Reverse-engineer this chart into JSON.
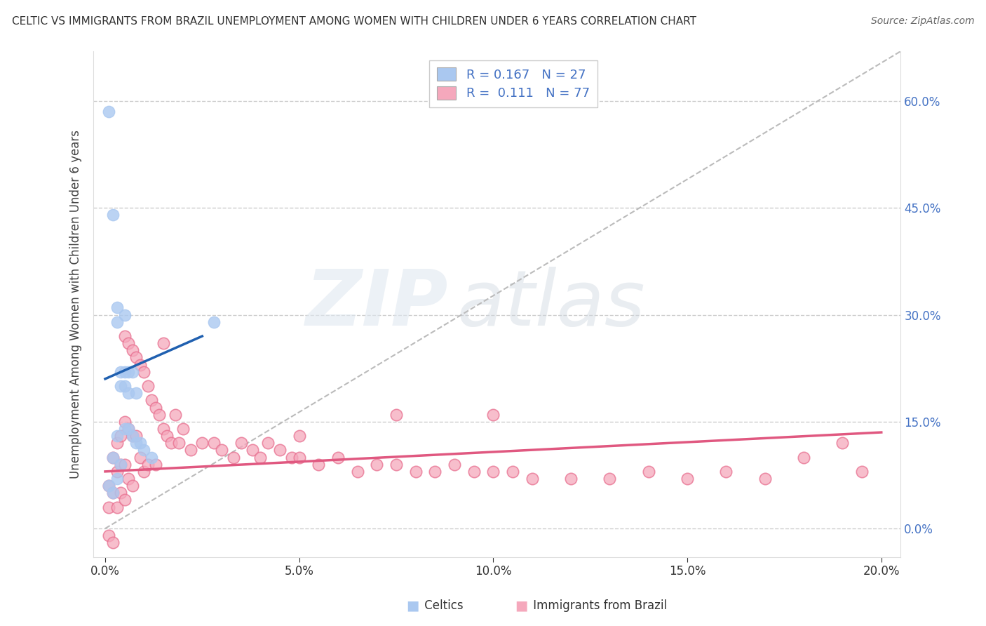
{
  "title": "CELTIC VS IMMIGRANTS FROM BRAZIL UNEMPLOYMENT AMONG WOMEN WITH CHILDREN UNDER 6 YEARS CORRELATION CHART",
  "source": "Source: ZipAtlas.com",
  "ylabel": "Unemployment Among Women with Children Under 6 years",
  "x_ticks": [
    "0.0%",
    "5.0%",
    "10.0%",
    "15.0%",
    "20.0%"
  ],
  "x_tick_vals": [
    0.0,
    0.05,
    0.1,
    0.15,
    0.2
  ],
  "y_ticks_right": [
    "0.0%",
    "15.0%",
    "30.0%",
    "45.0%",
    "60.0%"
  ],
  "y_tick_vals": [
    0.0,
    0.15,
    0.3,
    0.45,
    0.6
  ],
  "xlim": [
    -0.003,
    0.205
  ],
  "ylim": [
    -0.04,
    0.67
  ],
  "celtics_R": 0.167,
  "celtics_N": 27,
  "brazil_R": 0.111,
  "brazil_N": 77,
  "legend_labels": [
    "Celtics",
    "Immigrants from Brazil"
  ],
  "celtics_color": "#aac8f0",
  "celtics_edge_color": "#aac8f0",
  "celtics_line_color": "#2060b0",
  "brazil_color": "#f5a8bc",
  "brazil_edge_color": "#e87090",
  "brazil_line_color": "#e05880",
  "trendline_color": "#bbbbbb",
  "background_color": "#ffffff",
  "celtics_scatter_x": [
    0.001,
    0.001,
    0.002,
    0.002,
    0.002,
    0.003,
    0.003,
    0.003,
    0.003,
    0.004,
    0.004,
    0.004,
    0.005,
    0.005,
    0.005,
    0.005,
    0.006,
    0.006,
    0.006,
    0.007,
    0.007,
    0.008,
    0.008,
    0.009,
    0.01,
    0.012,
    0.028
  ],
  "celtics_scatter_y": [
    0.585,
    0.06,
    0.44,
    0.1,
    0.05,
    0.31,
    0.29,
    0.13,
    0.07,
    0.22,
    0.2,
    0.09,
    0.3,
    0.22,
    0.2,
    0.14,
    0.22,
    0.19,
    0.14,
    0.22,
    0.13,
    0.19,
    0.12,
    0.12,
    0.11,
    0.1,
    0.29
  ],
  "brazil_scatter_x": [
    0.001,
    0.001,
    0.001,
    0.002,
    0.002,
    0.002,
    0.003,
    0.003,
    0.003,
    0.004,
    0.004,
    0.004,
    0.005,
    0.005,
    0.005,
    0.005,
    0.006,
    0.006,
    0.006,
    0.007,
    0.007,
    0.007,
    0.008,
    0.008,
    0.009,
    0.009,
    0.01,
    0.01,
    0.011,
    0.011,
    0.012,
    0.013,
    0.013,
    0.014,
    0.015,
    0.015,
    0.016,
    0.017,
    0.018,
    0.019,
    0.02,
    0.022,
    0.025,
    0.028,
    0.03,
    0.033,
    0.035,
    0.038,
    0.04,
    0.042,
    0.045,
    0.048,
    0.05,
    0.055,
    0.06,
    0.065,
    0.07,
    0.075,
    0.08,
    0.085,
    0.09,
    0.095,
    0.1,
    0.105,
    0.11,
    0.12,
    0.13,
    0.14,
    0.15,
    0.16,
    0.17,
    0.18,
    0.19,
    0.195,
    0.1,
    0.075,
    0.05
  ],
  "brazil_scatter_y": [
    0.06,
    0.03,
    -0.01,
    0.1,
    0.05,
    -0.02,
    0.12,
    0.08,
    0.03,
    0.13,
    0.09,
    0.05,
    0.27,
    0.15,
    0.09,
    0.04,
    0.26,
    0.14,
    0.07,
    0.25,
    0.13,
    0.06,
    0.24,
    0.13,
    0.23,
    0.1,
    0.22,
    0.08,
    0.2,
    0.09,
    0.18,
    0.17,
    0.09,
    0.16,
    0.26,
    0.14,
    0.13,
    0.12,
    0.16,
    0.12,
    0.14,
    0.11,
    0.12,
    0.12,
    0.11,
    0.1,
    0.12,
    0.11,
    0.1,
    0.12,
    0.11,
    0.1,
    0.1,
    0.09,
    0.1,
    0.08,
    0.09,
    0.09,
    0.08,
    0.08,
    0.09,
    0.08,
    0.08,
    0.08,
    0.07,
    0.07,
    0.07,
    0.08,
    0.07,
    0.08,
    0.07,
    0.1,
    0.12,
    0.08,
    0.16,
    0.16,
    0.13
  ],
  "celtics_line_x": [
    0.0,
    0.025
  ],
  "celtics_line_y": [
    0.21,
    0.27
  ],
  "brazil_line_x": [
    0.0,
    0.2
  ],
  "brazil_line_y": [
    0.08,
    0.135
  ],
  "diag_line_x": [
    0.0,
    0.205
  ],
  "diag_line_y": [
    0.0,
    0.67
  ]
}
